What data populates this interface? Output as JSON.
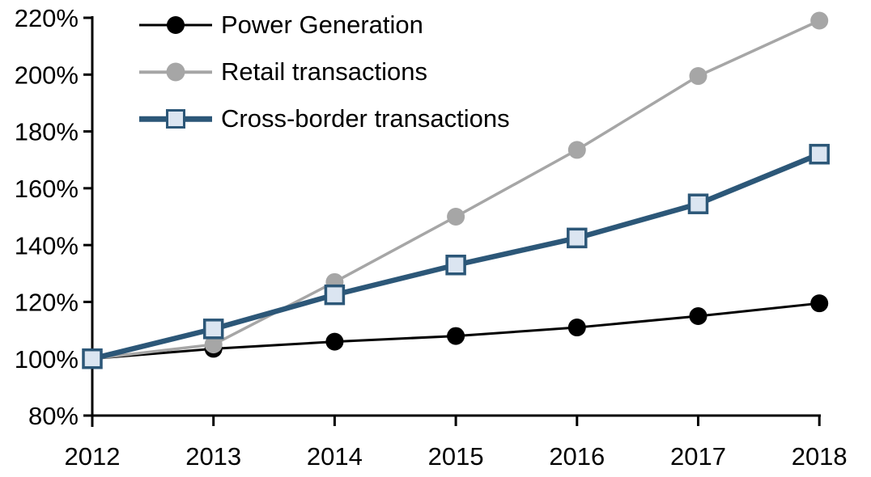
{
  "chart_data": {
    "type": "line",
    "title": "",
    "xlabel": "",
    "ylabel": "",
    "x": [
      2012,
      2013,
      2014,
      2015,
      2016,
      2017,
      2018
    ],
    "xtick_labels": [
      "2012",
      "2013",
      "2014",
      "2015",
      "2016",
      "2017",
      "2018"
    ],
    "ylim": [
      80,
      220
    ],
    "ytick_step": 20,
    "ytick_values": [
      80,
      100,
      120,
      140,
      160,
      180,
      200,
      220
    ],
    "ytick_labels": [
      "80%",
      "100%",
      "120%",
      "140%",
      "160%",
      "180%",
      "200%",
      "220%"
    ],
    "grid": false,
    "legend_position": "top-left",
    "axis_color": "#000000",
    "background_color": "#ffffff",
    "series": [
      {
        "name": "Power Generation",
        "color": "#000000",
        "line_width": 3,
        "marker": "circle",
        "marker_color": "#000000",
        "values": [
          100,
          103.5,
          106,
          108,
          111,
          115,
          119.5
        ]
      },
      {
        "name": "Retail transactions",
        "color": "#a6a6a6",
        "line_width": 3.5,
        "marker": "circle",
        "marker_color": "#a6a6a6",
        "values": [
          100,
          105,
          127,
          150,
          173.5,
          199.5,
          219
        ]
      },
      {
        "name": "Cross-border transactions",
        "color": "#2c5778",
        "line_width": 6.5,
        "marker": "square",
        "marker_fill": "#dbe5f1",
        "values": [
          100,
          110.5,
          122.5,
          133,
          142.5,
          154.5,
          172
        ]
      }
    ]
  }
}
